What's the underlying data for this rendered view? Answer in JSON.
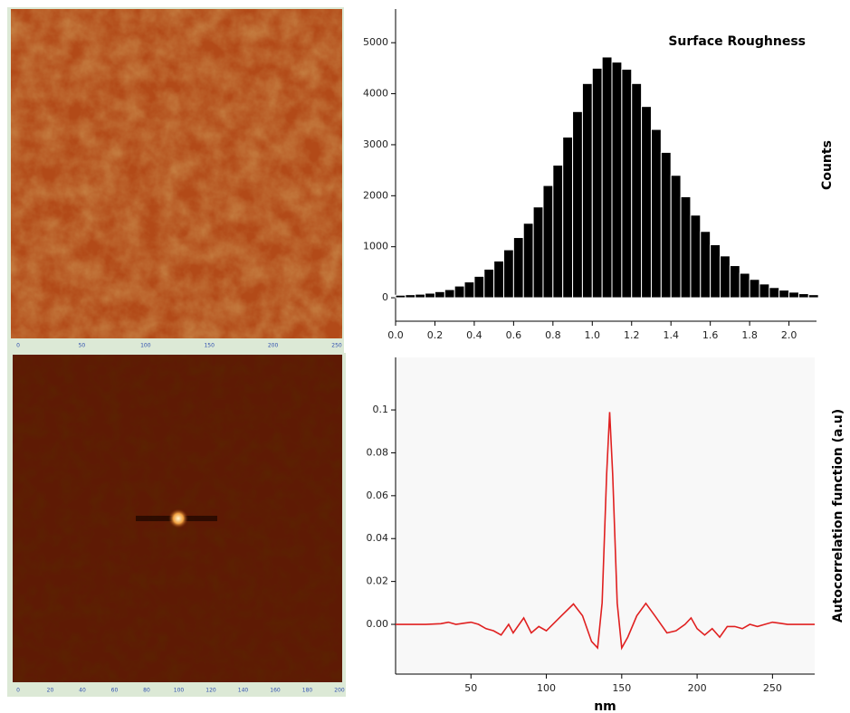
{
  "images": [
    {
      "xticks": [
        0,
        50,
        100,
        150,
        200,
        250
      ]
    },
    {
      "xticks": [
        0,
        20,
        40,
        60,
        80,
        100,
        120,
        140,
        160,
        180,
        200
      ]
    }
  ],
  "chart_data": [
    {
      "type": "histogram",
      "title": "Surface Roughness",
      "y_label": "Counts",
      "color": "#000000",
      "bins": [
        0,
        0.05,
        0.1,
        0.15,
        0.2,
        0.25,
        0.3,
        0.35,
        0.4,
        0.45,
        0.5,
        0.55,
        0.6,
        0.65,
        0.7,
        0.75,
        0.8,
        0.85,
        0.9,
        0.95,
        1,
        1.05,
        1.1,
        1.15,
        1.2,
        1.25,
        1.3,
        1.35,
        1.4,
        1.45,
        1.5,
        1.55,
        1.6,
        1.65,
        1.7,
        1.75,
        1.8,
        1.85,
        1.9,
        1.95,
        2,
        2.05,
        2.1,
        2.15
      ],
      "values": [
        50,
        60,
        70,
        90,
        120,
        160,
        230,
        310,
        420,
        560,
        720,
        940,
        1180,
        1460,
        1780,
        2200,
        2600,
        3150,
        3650,
        4200,
        4500,
        4720,
        4620,
        4480,
        4200,
        3750,
        3300,
        2850,
        2400,
        1980,
        1620,
        1300,
        1040,
        820,
        630,
        480,
        360,
        270,
        200,
        150,
        110,
        80,
        60
      ],
      "xlim": [
        0,
        2.14
      ],
      "ylim": [
        -460,
        5660
      ],
      "xticks": [
        {
          "value": 0,
          "label": "0.0"
        },
        0.2,
        0.4,
        0.6,
        0.8,
        {
          "value": 1,
          "label": "1.0"
        },
        1.2,
        1.4,
        1.6,
        1.8,
        {
          "value": 2,
          "label": "2.0"
        }
      ],
      "yticks": [
        0,
        1000,
        2000,
        3000,
        4000,
        5000
      ]
    },
    {
      "type": "line",
      "x_label": "nm",
      "y_label": "Autocorrelation function (a.u)",
      "color": "#e02020",
      "x": [
        0,
        10,
        20,
        30,
        35,
        40,
        45,
        50,
        55,
        60,
        65,
        70,
        75,
        78,
        85,
        90,
        95,
        100,
        110,
        118,
        124,
        130,
        134,
        137,
        140,
        142,
        144,
        147,
        150,
        154,
        160,
        166,
        172,
        180,
        186,
        192,
        196,
        200,
        205,
        210,
        215,
        220,
        225,
        230,
        235,
        240,
        245,
        250,
        255,
        260,
        270,
        278
      ],
      "values": [
        0,
        0,
        0,
        0.0003,
        0.001,
        0,
        0.0005,
        0.001,
        0,
        -0.002,
        -0.003,
        -0.005,
        0,
        -0.004,
        0.003,
        -0.004,
        -0.001,
        -0.003,
        0.004,
        0.0095,
        0.004,
        -0.008,
        -0.011,
        0.01,
        0.07,
        0.099,
        0.07,
        0.01,
        -0.011,
        -0.006,
        0.004,
        0.0098,
        0.004,
        -0.004,
        -0.003,
        0,
        0.003,
        -0.002,
        -0.005,
        -0.002,
        -0.006,
        -0.001,
        -0.001,
        -0.002,
        0,
        -0.001,
        0,
        0.001,
        0.0005,
        0,
        0,
        0
      ],
      "xlim": [
        0,
        278
      ],
      "ylim": [
        -0.0232,
        0.1245
      ],
      "xticks": [
        50,
        100,
        150,
        200,
        250
      ],
      "yticks": [
        {
          "value": 0,
          "label": "0.00"
        },
        {
          "value": 0.02,
          "label": "0.02"
        },
        {
          "value": 0.04,
          "label": "0.04"
        },
        {
          "value": 0.06,
          "label": "0.06"
        },
        {
          "value": 0.08,
          "label": "0.08"
        },
        0.1
      ]
    }
  ]
}
